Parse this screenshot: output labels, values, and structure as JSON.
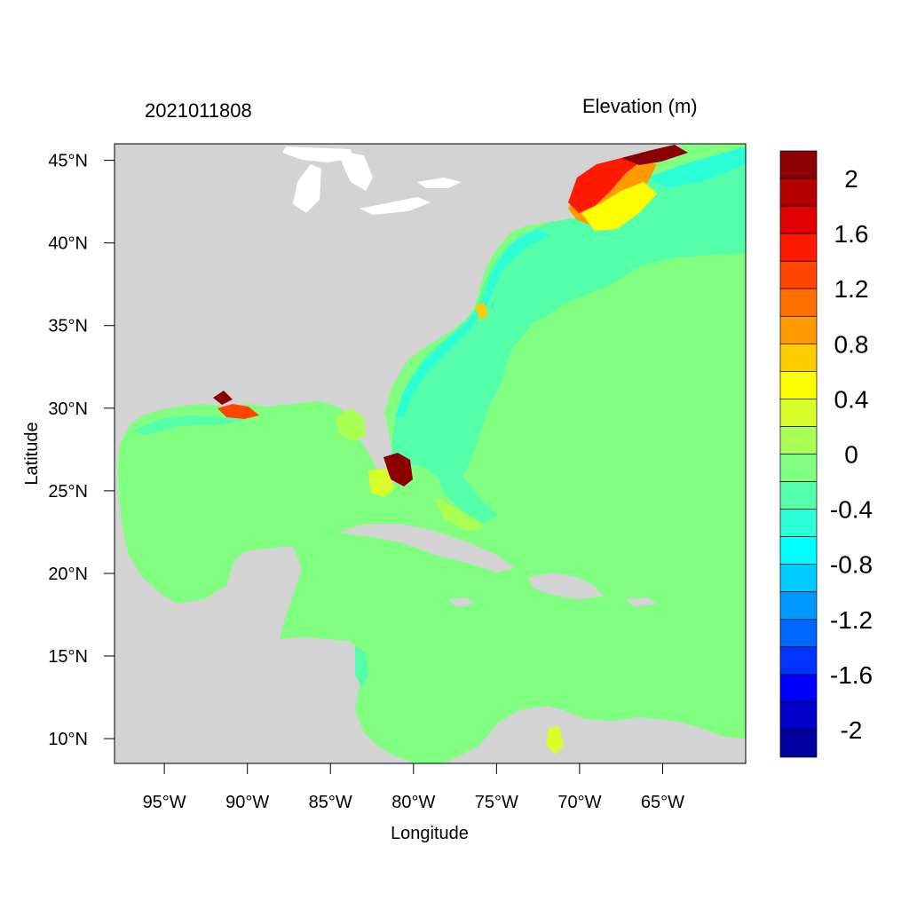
{
  "titles": {
    "left": "2021011808",
    "right": "Elevation (m)"
  },
  "axes": {
    "xlabel": "Longitude",
    "ylabel": "Latitude",
    "x_ticks": [
      "95°W",
      "90°W",
      "85°W",
      "80°W",
      "75°W",
      "70°W",
      "65°W"
    ],
    "y_ticks": [
      "45°N",
      "40°N",
      "35°N",
      "30°N",
      "25°N",
      "20°N",
      "15°N",
      "10°N"
    ]
  },
  "map": {
    "lon_range": [
      -98,
      -60
    ],
    "lat_range": [
      8.5,
      46
    ],
    "land_color": "#d3d3d3",
    "ocean_base_color": "#80ff80"
  },
  "colorbar": {
    "labels": [
      "2",
      "1.6",
      "1.2",
      "0.8",
      "0.4",
      "0",
      "-0.4",
      "-0.8",
      "-1.2",
      "-1.6",
      "-2"
    ],
    "colors": [
      "#8b0000",
      "#b50000",
      "#e00000",
      "#ff1a00",
      "#ff4500",
      "#ff7000",
      "#ff9a00",
      "#ffcc00",
      "#ffff00",
      "#d8ff2a",
      "#aaff55",
      "#80ff80",
      "#55ffaa",
      "#2affd5",
      "#00ffff",
      "#00ccff",
      "#0099ff",
      "#0066ff",
      "#0033ff",
      "#0000ff",
      "#0000cc",
      "#00009f"
    ]
  }
}
